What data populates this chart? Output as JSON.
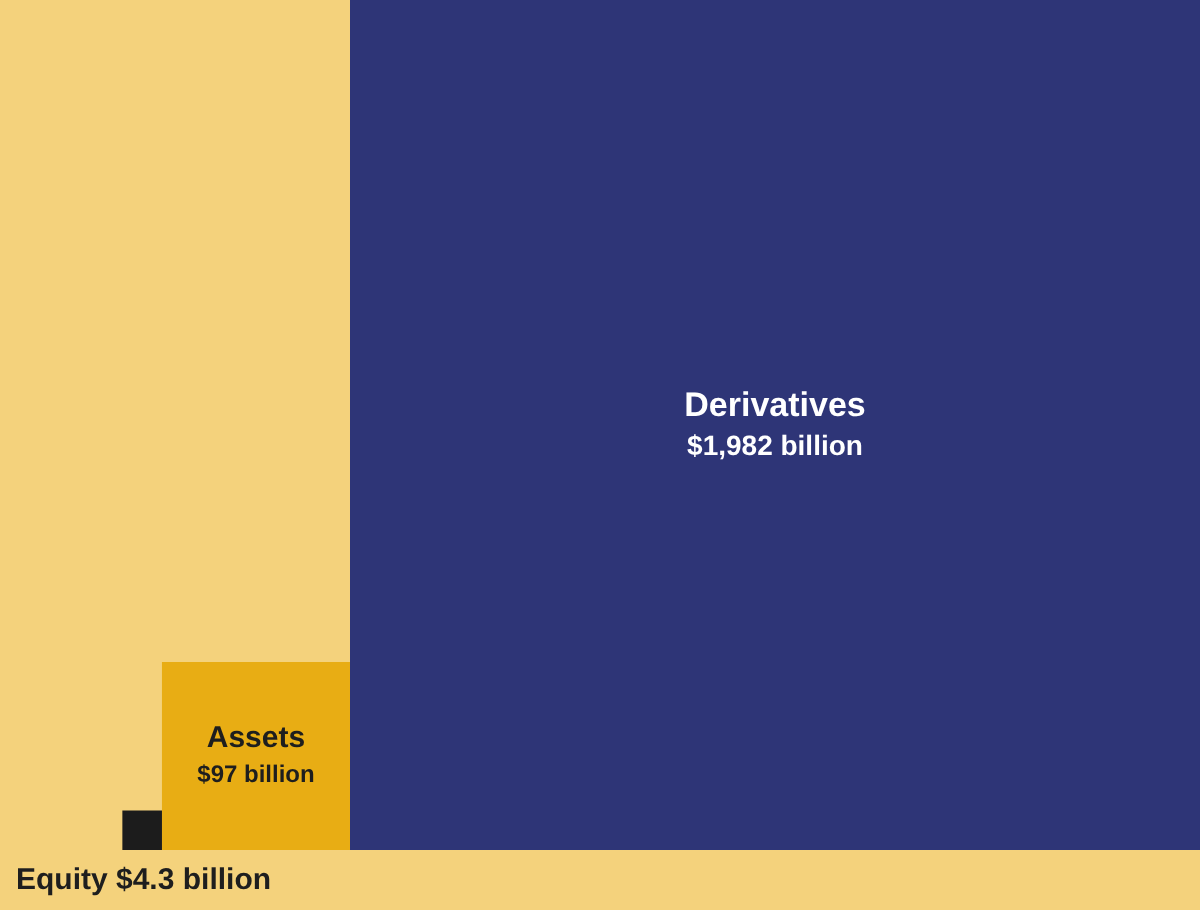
{
  "chart_data": {
    "type": "other",
    "categories": [
      "Derivatives",
      "Assets",
      "Equity"
    ],
    "values": [
      1982,
      97,
      4.3
    ],
    "colors": [
      "#2e3577",
      "#e8ad14",
      "#1c1c1c"
    ],
    "value_labels": [
      "$1,982 billion",
      "$97 billion",
      "$4.3 billion"
    ]
  }
}
